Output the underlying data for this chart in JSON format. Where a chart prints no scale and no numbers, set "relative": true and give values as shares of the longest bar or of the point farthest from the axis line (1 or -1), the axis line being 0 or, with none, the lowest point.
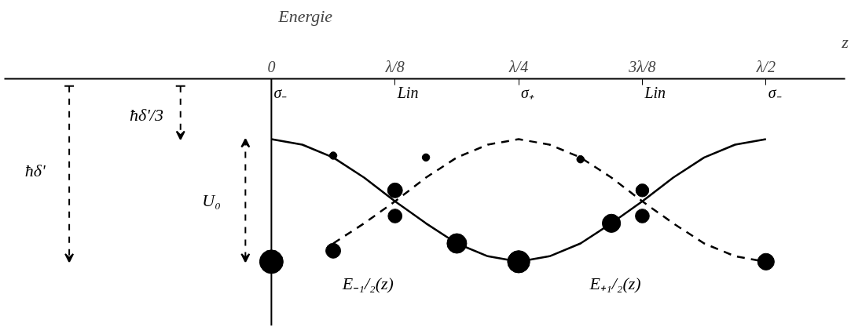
{
  "chart_data": {
    "type": "line",
    "relative": true,
    "ylabel": "Energie",
    "xlabel": "z",
    "categories": [
      "0",
      null,
      null,
      null,
      "λ/8",
      null,
      null,
      null,
      "λ/4",
      null,
      null,
      null,
      "3λ/8",
      null,
      null,
      null,
      "λ/2"
    ],
    "series": [
      {
        "name": "E₊₁/₂(z)",
        "color": "#000000",
        "line_style": "solid",
        "values": [
          -0.33,
          -0.36,
          -0.43,
          -0.54,
          -0.67,
          -0.79,
          -0.9,
          -0.97,
          -1,
          -0.97,
          -0.9,
          -0.79,
          -0.67,
          -0.54,
          -0.43,
          -0.36,
          -0.33
        ]
      },
      {
        "name": "E₋₁/₂(z)",
        "color": "#000000",
        "line_style": "dashed",
        "values": [
          null,
          null,
          -0.9,
          -0.79,
          -0.67,
          -0.54,
          -0.43,
          -0.36,
          -0.33,
          -0.36,
          -0.43,
          -0.54,
          -0.67,
          -0.79,
          -0.9,
          -0.97,
          -1
        ]
      },
      {
        "type": "bubble",
        "color": "#000000",
        "values": [
          -1,
          null,
          -0.94,
          null,
          -0.61,
          null,
          -0.9,
          null,
          -1,
          null,
          null,
          -0.79,
          -0.61,
          null,
          null,
          null,
          -1
        ],
        "sizes": [
          1,
          null,
          0.4,
          null,
          0.4,
          null,
          0.7,
          null,
          0.9,
          null,
          null,
          0.6,
          0.3,
          null,
          null,
          null,
          0.5
        ]
      },
      {
        "type": "bubble",
        "color": "#000000",
        "values": [
          null,
          null,
          -0.42,
          null,
          -0.75,
          -0.43,
          null,
          null,
          null,
          null,
          -0.44,
          null,
          -0.75,
          null,
          null,
          null,
          null
        ],
        "sizes": [
          null,
          null,
          0.1,
          null,
          0.35,
          0.1,
          null,
          null,
          null,
          null,
          0.1,
          null,
          0.35,
          null,
          null,
          null,
          null
        ]
      }
    ],
    "annotations": [
      "σ₋",
      "Lin",
      "σ₊",
      "Lin",
      "σ₋",
      "ħδ'",
      "ħδ'/3",
      "U₀"
    ]
  }
}
